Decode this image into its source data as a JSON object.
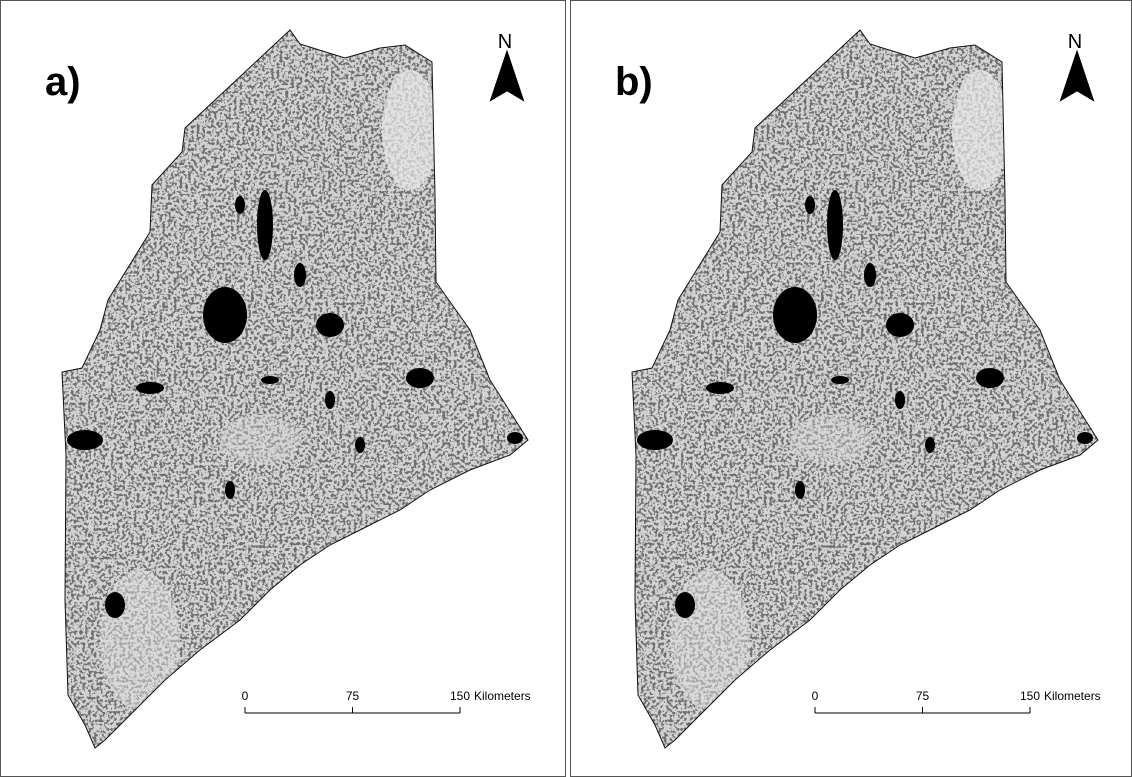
{
  "panels": [
    {
      "label": "a)",
      "north": "N",
      "scale_bar": {
        "ticks": [
          0,
          75,
          150
        ],
        "unit": "Kilometers"
      }
    },
    {
      "label": "b)",
      "north": "N",
      "scale_bar": {
        "ticks": [
          0,
          75,
          150
        ],
        "unit": "Kilometers"
      }
    }
  ]
}
